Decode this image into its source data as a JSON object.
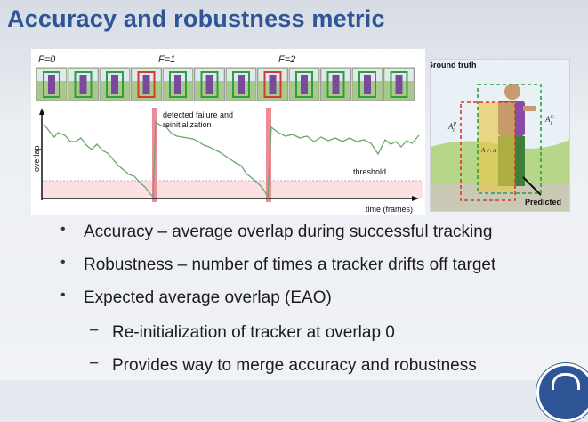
{
  "slide": {
    "title": "Accuracy and robustness metric"
  },
  "figure": {
    "frame_labels": [
      "F=0",
      "F=1",
      "F=2"
    ],
    "failure_annotation": [
      "detected failure and",
      "reinitialization"
    ],
    "threshold_label": "threshold",
    "x_axis_label": "time (frames)",
    "y_axis_label": "overlap",
    "colors": {
      "curve": "#6aa86a",
      "failure_bar": "#f08a9a",
      "threshold_zone": "#fde0e4",
      "gt_box": "#2e9e3e",
      "pred_box": "#d63a2a"
    },
    "thumbnail_boxes": [
      "green",
      "green",
      "green",
      "red",
      "green",
      "green",
      "green",
      "red",
      "green",
      "green",
      "green",
      "green"
    ]
  },
  "gt_figure": {
    "ground_truth_label": "Ground truth",
    "predicted_label": "Predicted",
    "label_gt": "A",
    "label_gt_sup": "G",
    "label_gt_sub": "t",
    "label_pred": "A",
    "label_pred_sup": "P",
    "label_pred_sub": "t",
    "label_intersection": "A",
    "label_intersection_rest": "∩ A"
  },
  "bullets": [
    {
      "text": "Accuracy – average overlap during successful tracking",
      "level": 1
    },
    {
      "text": "Robustness – number of  times a tracker drifts off target",
      "level": 1
    },
    {
      "text": "Expected average overlap (EAO)",
      "level": 1
    },
    {
      "text": "Re-initialization of tracker at overlap 0",
      "level": 2
    },
    {
      "text": "Provides way to merge accuracy and robustness",
      "level": 2
    }
  ],
  "icons": {
    "bullet": "•",
    "sub_bullet": "−",
    "logo": "university-logo-icon"
  }
}
